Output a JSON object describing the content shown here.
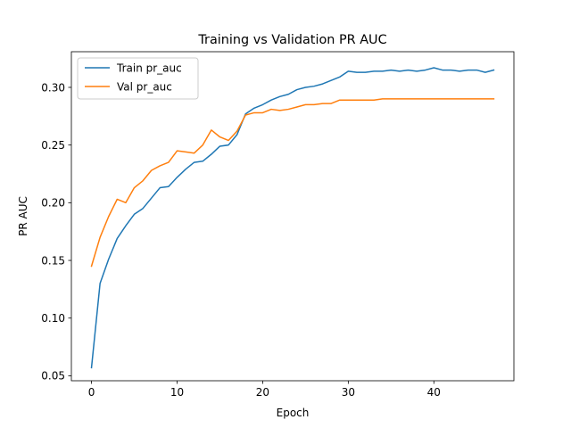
{
  "chart_data": {
    "type": "line",
    "title": "Training vs Validation PR AUC",
    "xlabel": "Epoch",
    "ylabel": "PR AUC",
    "xlim": [
      -2.35,
      49.35
    ],
    "ylim": [
      0.0457,
      0.3309
    ],
    "x_ticks": [
      0,
      10,
      20,
      30,
      40
    ],
    "y_ticks": [
      0.05,
      0.1,
      0.15,
      0.2,
      0.25,
      0.3
    ],
    "y_tick_labels": [
      "0.05",
      "0.10",
      "0.15",
      "0.20",
      "0.25",
      "0.30"
    ],
    "grid": false,
    "legend_position": "upper-left",
    "x": [
      0,
      1,
      2,
      3,
      4,
      5,
      6,
      7,
      8,
      9,
      10,
      11,
      12,
      13,
      14,
      15,
      16,
      17,
      18,
      19,
      20,
      21,
      22,
      23,
      24,
      25,
      26,
      27,
      28,
      29,
      30,
      31,
      32,
      33,
      34,
      35,
      36,
      37,
      38,
      39,
      40,
      41,
      42,
      43,
      44,
      45,
      46,
      47
    ],
    "series": [
      {
        "name": "Train pr_auc",
        "color": "#1f77b4",
        "values": [
          0.057,
          0.13,
          0.151,
          0.169,
          0.18,
          0.19,
          0.195,
          0.204,
          0.213,
          0.214,
          0.222,
          0.229,
          0.235,
          0.236,
          0.242,
          0.249,
          0.25,
          0.259,
          0.277,
          0.282,
          0.285,
          0.289,
          0.292,
          0.294,
          0.298,
          0.3,
          0.301,
          0.303,
          0.306,
          0.309,
          0.314,
          0.313,
          0.313,
          0.314,
          0.314,
          0.315,
          0.314,
          0.315,
          0.314,
          0.315,
          0.317,
          0.315,
          0.315,
          0.314,
          0.315,
          0.315,
          0.313,
          0.315
        ]
      },
      {
        "name": "Val pr_auc",
        "color": "#ff7f0e",
        "values": [
          0.145,
          0.17,
          0.188,
          0.203,
          0.2,
          0.213,
          0.219,
          0.228,
          0.232,
          0.235,
          0.245,
          0.244,
          0.243,
          0.25,
          0.263,
          0.257,
          0.254,
          0.262,
          0.276,
          0.278,
          0.278,
          0.281,
          0.28,
          0.281,
          0.283,
          0.285,
          0.285,
          0.286,
          0.286,
          0.289,
          0.289,
          0.289,
          0.289,
          0.289,
          0.29,
          0.29,
          0.29,
          0.29,
          0.29,
          0.29,
          0.29,
          0.29,
          0.29,
          0.29,
          0.29,
          0.29,
          0.29,
          0.29
        ]
      }
    ]
  }
}
